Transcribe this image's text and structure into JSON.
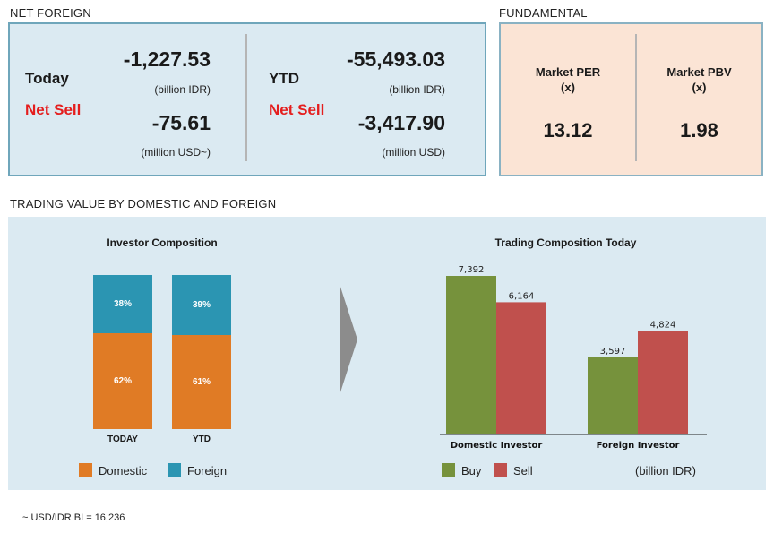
{
  "net_foreign": {
    "section_title": "NET FOREIGN",
    "today": {
      "label": "Today",
      "direction": "Net Sell",
      "value_idr": "-1,227.53",
      "unit_idr": "(billion IDR)",
      "value_usd": "-75.61",
      "unit_usd": "(million USD~)"
    },
    "ytd": {
      "label": "YTD",
      "direction": "Net Sell",
      "value_idr": "-55,493.03",
      "unit_idr": "(billion IDR)",
      "value_usd": "-3,417.90",
      "unit_usd": "(million USD)"
    }
  },
  "fundamental": {
    "section_title": "FUNDAMENTAL",
    "per_label": "Market PER",
    "per_unit": "(x)",
    "per_value": "13.12",
    "pbv_label": "Market PBV",
    "pbv_unit": "(x)",
    "pbv_value": "1.98"
  },
  "trading_section_title": "TRADING VALUE BY DOMESTIC AND FOREIGN",
  "colors": {
    "domestic": "#e07b25",
    "foreign": "#2b95b2",
    "buy": "#76923c",
    "sell": "#c0504d",
    "net_sell": "#e41e1e"
  },
  "chart_data": [
    {
      "type": "bar",
      "stacked": true,
      "percent": true,
      "title": "Investor Composition",
      "categories": [
        "TODAY",
        "YTD"
      ],
      "series": [
        {
          "name": "Domestic",
          "values": [
            62,
            61
          ],
          "labels": [
            "62%",
            "61%"
          ]
        },
        {
          "name": "Foreign",
          "values": [
            38,
            39
          ],
          "labels": [
            "38%",
            "39%"
          ]
        }
      ],
      "ylim": [
        0,
        100
      ],
      "legend": "bottom"
    },
    {
      "type": "bar",
      "title": "Trading Composition Today",
      "categories": [
        "Domestic Investor",
        "Foreign Investor"
      ],
      "series": [
        {
          "name": "Buy",
          "values": [
            7392,
            3597
          ],
          "labels": [
            "7,392",
            "3,597"
          ]
        },
        {
          "name": "Sell",
          "values": [
            6164,
            4824
          ],
          "labels": [
            "6,164",
            "4,824"
          ]
        }
      ],
      "unit_note": "(billion IDR)",
      "ylim": [
        0,
        7392
      ],
      "legend": "bottom"
    }
  ],
  "footnote": "~ USD/IDR BI = 16,236"
}
